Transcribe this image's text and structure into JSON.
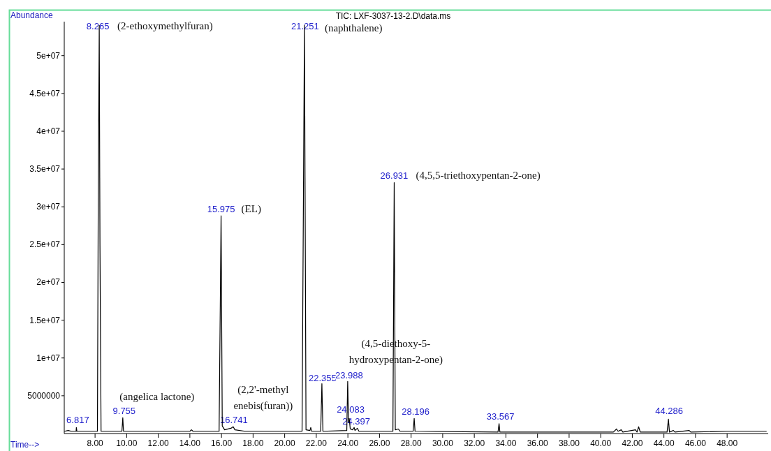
{
  "chart_data": {
    "type": "line",
    "title": "TIC: LXF-3037-13-2.D\\data.ms",
    "xlabel": "Time-->",
    "ylabel": "Abundance",
    "xlim": [
      6.05,
      50.6
    ],
    "ylim": [
      0,
      54500000
    ],
    "xticks": [
      {
        "value": 8,
        "label": "8.00"
      },
      {
        "value": 10,
        "label": "10.00"
      },
      {
        "value": 12,
        "label": "12.00"
      },
      {
        "value": 14,
        "label": "14.00"
      },
      {
        "value": 16,
        "label": "16.00"
      },
      {
        "value": 18,
        "label": "18.00"
      },
      {
        "value": 20,
        "label": "20.00"
      },
      {
        "value": 22,
        "label": "22.00"
      },
      {
        "value": 24,
        "label": "24.00"
      },
      {
        "value": 26,
        "label": "26.00"
      },
      {
        "value": 28,
        "label": "28.00"
      },
      {
        "value": 30,
        "label": "30.00"
      },
      {
        "value": 32,
        "label": "32.00"
      },
      {
        "value": 34,
        "label": "34.00"
      },
      {
        "value": 36,
        "label": "36.00"
      },
      {
        "value": 38,
        "label": "38.00"
      },
      {
        "value": 40,
        "label": "40.00"
      },
      {
        "value": 42,
        "label": "42.00"
      },
      {
        "value": 44,
        "label": "44.00"
      },
      {
        "value": 46,
        "label": "46.00"
      },
      {
        "value": 48,
        "label": "48.00"
      }
    ],
    "yticks": [
      5000000,
      {
        "value": 10000000,
        "label": "1e+07"
      },
      {
        "value": 15000000,
        "label": "1.5e+07"
      },
      {
        "value": 20000000,
        "label": "2e+07"
      },
      {
        "value": 25000000,
        "label": "2.5e+07"
      },
      {
        "value": 30000000,
        "label": "3e+07"
      },
      {
        "value": 35000000,
        "label": "3.5e+07"
      },
      {
        "value": 40000000,
        "label": "4e+07"
      },
      {
        "value": 45000000,
        "label": "4.5e+07"
      },
      {
        "value": 50000000,
        "label": "5e+07"
      }
    ],
    "grid": false,
    "marker": "none",
    "line_style": "solid",
    "series": [
      {
        "color": "#000000",
        "x": [
          6.06,
          6.3,
          6.5,
          6.8,
          6.817,
          6.85,
          7.5,
          8.15,
          8.2,
          8.265,
          8.31,
          8.38,
          9.7,
          9.755,
          9.8,
          14.0,
          14.1,
          14.2,
          15.85,
          15.975,
          16.05,
          16.2,
          16.6,
          16.741,
          16.85,
          17.5,
          21.1,
          21.251,
          21.35,
          21.6,
          21.65,
          21.7,
          22.28,
          22.355,
          22.42,
          23.93,
          23.988,
          24.04,
          24.083,
          24.15,
          24.3,
          24.397,
          24.45,
          24.6,
          24.7,
          25.5,
          26.85,
          26.931,
          27.0,
          27.2,
          27.3,
          28.13,
          28.196,
          28.25,
          33.5,
          33.567,
          33.62,
          40.8,
          41.0,
          41.1,
          41.3,
          41.4,
          42.2,
          42.3,
          42.4,
          42.5,
          44.2,
          44.286,
          44.35,
          44.6,
          44.7,
          45.6,
          45.7,
          48,
          50.5
        ],
        "values": [
          300000,
          400000,
          300000,
          300000,
          800000,
          300000,
          300000,
          300000,
          30000000,
          54000000,
          25000000,
          300000,
          300000,
          2100000,
          300000,
          300000,
          500000,
          300000,
          300000,
          28800000,
          1000000,
          500000,
          700000,
          900000,
          500000,
          300000,
          300000,
          54000000,
          500000,
          400000,
          800000,
          300000,
          300000,
          6600000,
          300000,
          400000,
          6900000,
          1500000,
          2000000,
          600000,
          500000,
          800000,
          400000,
          700000,
          300000,
          300000,
          300000,
          33200000,
          500000,
          600000,
          300000,
          300000,
          2000000,
          300000,
          200000,
          1300000,
          200000,
          200000,
          600000,
          300000,
          500000,
          200000,
          500000,
          200000,
          900000,
          200000,
          200000,
          1900000,
          200000,
          400000,
          200000,
          400000,
          200000,
          300000,
          300000
        ]
      }
    ],
    "annotations": [
      {
        "text": "8.265",
        "x": 8.265,
        "y": 54000000
      },
      {
        "text": "(2-ethoxymethylfuran)",
        "x": 8.265,
        "y": 54000000
      },
      {
        "text": "21.251",
        "x": 21.251,
        "y": 54000000
      },
      {
        "text": "(naphthalene)",
        "x": 21.251,
        "y": 54000000
      },
      {
        "text": "15.975",
        "x": 15.975,
        "y": 28800000
      },
      {
        "text": "(EL)",
        "x": 15.975,
        "y": 28800000
      },
      {
        "text": "26.931",
        "x": 26.931,
        "y": 33200000
      },
      {
        "text": "(4,5,5-triethoxypentan-2-one)",
        "x": 26.931,
        "y": 33200000
      },
      {
        "text": "6.817",
        "x": 6.817,
        "y": 800000
      },
      {
        "text": "9.755",
        "x": 9.755,
        "y": 2100000
      },
      {
        "text": "(angelica lactone)",
        "x": 9.755,
        "y": 2100000
      },
      {
        "text": "16.741",
        "x": 16.741,
        "y": 900000
      },
      {
        "text": "(2,2'-methyl\nenebis(furan))",
        "x": 16.741,
        "y": 900000
      },
      {
        "text": "22.355",
        "x": 22.355,
        "y": 6600000
      },
      {
        "text": "23.988",
        "x": 23.988,
        "y": 6900000
      },
      {
        "text": "(4,5-diethoxy-5-\nhydroxypentan-2-one)",
        "x": 23.988,
        "y": 6900000
      },
      {
        "text": "24.083",
        "x": 24.083,
        "y": 2000000
      },
      {
        "text": "24.397",
        "x": 24.397,
        "y": 800000
      },
      {
        "text": "28.196",
        "x": 28.196,
        "y": 2000000
      },
      {
        "text": "33.567",
        "x": 33.567,
        "y": 1300000
      },
      {
        "text": "44.286",
        "x": 44.286,
        "y": 1900000
      }
    ]
  }
}
